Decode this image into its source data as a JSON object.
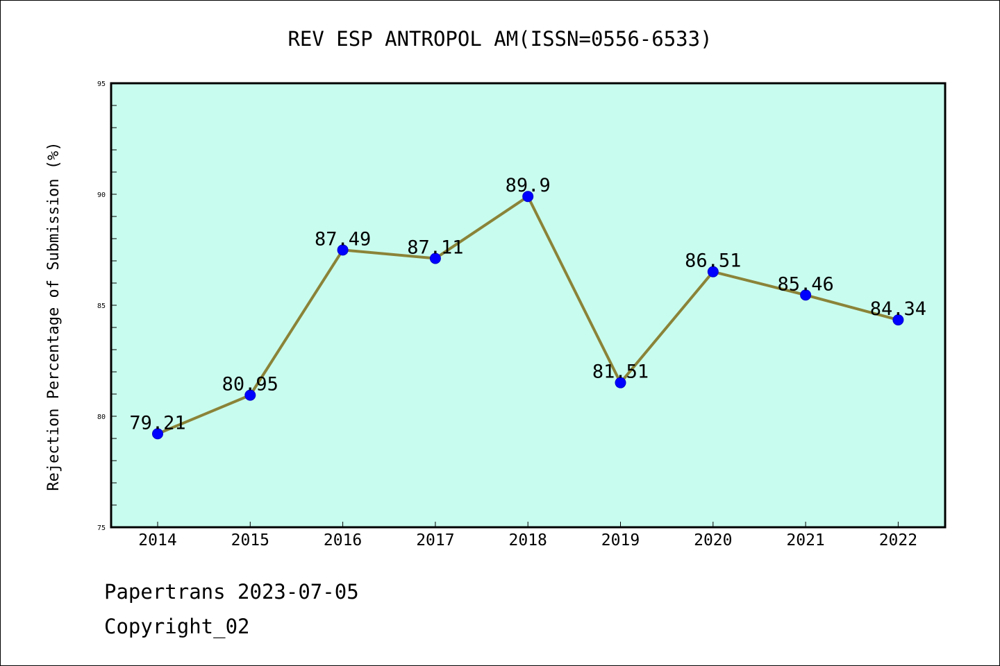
{
  "chart_data": {
    "type": "line",
    "title": "REV ESP ANTROPOL AM(ISSN=0556-6533)",
    "xlabel": "",
    "ylabel": "Rejection Percentage of Submission (%)",
    "categories": [
      "2014",
      "2015",
      "2016",
      "2017",
      "2018",
      "2019",
      "2020",
      "2021",
      "2022"
    ],
    "series": [
      {
        "values": [
          79.21,
          80.95,
          87.49,
          87.11,
          89.9,
          81.51,
          86.51,
          85.46,
          84.34
        ],
        "labels": [
          "79.21",
          "80.95",
          "87.49",
          "87.11",
          "89.9",
          "81.51",
          "86.51",
          "85.46",
          "84.34"
        ]
      }
    ],
    "ylim": [
      75,
      95
    ],
    "yticks": [
      "75",
      "80",
      "85",
      "90",
      "95"
    ],
    "grid": false,
    "colors": {
      "plot_background": "#c8fcee",
      "line": "#8b8338",
      "marker": "#0000ff"
    }
  },
  "footer": {
    "line1": "Papertrans 2023-07-05",
    "line2": "Copyright_02"
  }
}
